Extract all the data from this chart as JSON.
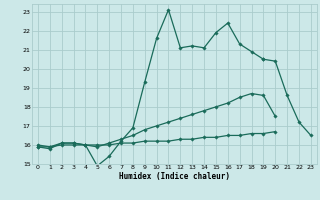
{
  "xlabel": "Humidex (Indice chaleur)",
  "bg_color": "#cce8e8",
  "grid_color": "#aacccc",
  "line_color": "#1a6b5a",
  "xlim": [
    -0.5,
    23.5
  ],
  "ylim": [
    15,
    23.4
  ],
  "xticks": [
    0,
    1,
    2,
    3,
    4,
    5,
    6,
    7,
    8,
    9,
    10,
    11,
    12,
    13,
    14,
    15,
    16,
    17,
    18,
    19,
    20,
    21,
    22,
    23
  ],
  "yticks": [
    15,
    16,
    17,
    18,
    19,
    20,
    21,
    22,
    23
  ],
  "lines": [
    {
      "x": [
        0,
        1,
        2,
        3,
        4,
        5,
        6,
        7,
        8,
        9,
        10,
        11,
        12,
        13,
        14,
        15,
        16,
        17,
        18,
        19
      ],
      "y": [
        15.9,
        15.8,
        16.1,
        16.1,
        16.0,
        14.9,
        15.4,
        16.2,
        16.9,
        19.3,
        21.6,
        23.1,
        21.1,
        21.2,
        21.1,
        21.9,
        22.4,
        21.3,
        20.9,
        20.5
      ]
    },
    {
      "x": [
        19,
        20,
        21,
        22,
        23
      ],
      "y": [
        20.5,
        20.4,
        18.6,
        17.2,
        16.5
      ]
    },
    {
      "x": [
        0,
        1,
        2,
        3,
        4,
        5,
        6,
        7,
        8,
        9,
        10,
        11,
        12,
        13,
        14,
        15,
        16,
        17,
        18,
        19,
        20,
        21,
        22,
        23
      ],
      "y": [
        16.0,
        15.9,
        16.1,
        16.1,
        16.0,
        15.9,
        16.1,
        16.3,
        16.5,
        16.8,
        17.0,
        17.2,
        17.4,
        17.6,
        17.8,
        18.0,
        18.2,
        18.5,
        18.7,
        18.6,
        17.5,
        null,
        null,
        null
      ]
    },
    {
      "x": [
        0,
        1,
        2,
        3,
        4,
        5,
        6,
        7,
        8,
        9,
        10,
        11,
        12,
        13,
        14,
        15,
        16,
        17,
        18,
        19,
        20,
        21,
        22,
        23
      ],
      "y": [
        15.9,
        15.9,
        16.0,
        16.0,
        16.0,
        16.0,
        16.0,
        16.1,
        16.1,
        16.2,
        16.2,
        16.2,
        16.3,
        16.3,
        16.4,
        16.4,
        16.5,
        16.5,
        16.6,
        16.6,
        16.7,
        null,
        null,
        null
      ]
    }
  ]
}
